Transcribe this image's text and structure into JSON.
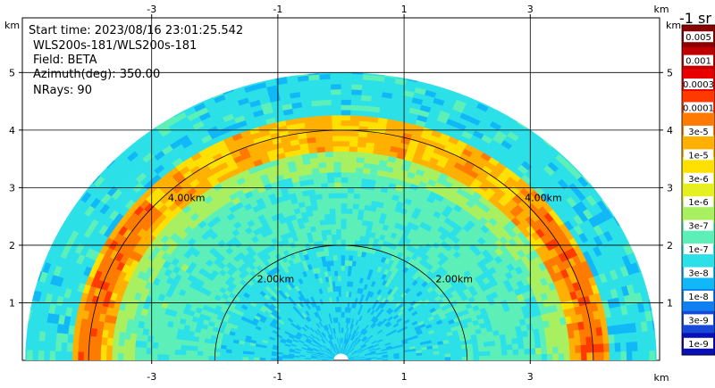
{
  "chart_data": {
    "type": "heatmap",
    "projection": "polar-sector (PPI/RHI style)",
    "info": {
      "start_time": "Start time: 2023/08/16 23:01:25.542",
      "instrument": "WLS200s-181/WLS200s-181",
      "field": "Field: BETA",
      "azimuth": "Azimuth(deg): 350.00",
      "nrays": "NRays: 90"
    },
    "x_axis": {
      "unit_label": "km",
      "ticks": [
        "-3",
        "-1",
        "1",
        "3"
      ],
      "tick_values": [
        -3,
        -1,
        1,
        3
      ],
      "range": [
        -5.05,
        5.05
      ]
    },
    "y_axis": {
      "unit_label": "km",
      "ticks": [
        "1",
        "2",
        "3",
        "4",
        "5"
      ],
      "tick_values": [
        1,
        2,
        3,
        4,
        5
      ],
      "range": [
        0,
        5.95
      ]
    },
    "grid": true,
    "range_rings": [
      {
        "radius_km": 2,
        "label": "2.00km"
      },
      {
        "radius_km": 4,
        "label": "4.00km"
      }
    ],
    "max_range_km": 5.0,
    "colorbar": {
      "title": "-1 sr",
      "position": "right",
      "labels": [
        "0.005",
        "0.001",
        "0.0003",
        "0.0001",
        "3e-5",
        "1e-5",
        "3e-6",
        "1e-6",
        "3e-7",
        "1e-7",
        "3e-8",
        "1e-8",
        "3e-9",
        "1e-9"
      ],
      "colors": [
        "#8b0000",
        "#c00000",
        "#e80000",
        "#ff3a00",
        "#ff7a00",
        "#ffb000",
        "#ffe000",
        "#e6f020",
        "#a8f060",
        "#5cf0b8",
        "#2ce0e8",
        "#10b8f8",
        "#1080f0",
        "#1848d8",
        "#0a10b8"
      ]
    },
    "field_description": {
      "near_range_low_level_class": "3e-8",
      "mid_range_class": "1e-7",
      "layer_band_radius_km": 4.0,
      "layer_band_class": "1e-5",
      "layer_band_peak_class": "1e-4",
      "far_range_class": "3e-8"
    }
  }
}
